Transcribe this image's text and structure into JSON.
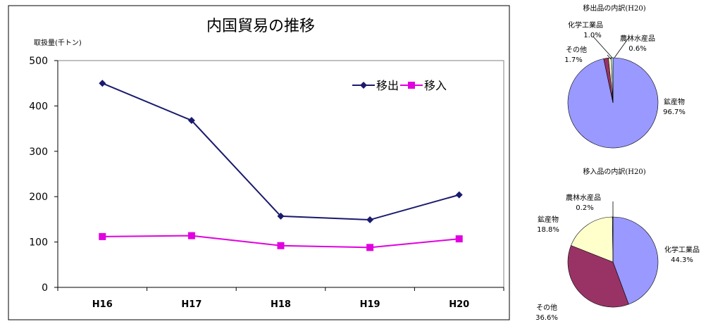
{
  "chart_data": [
    {
      "type": "line",
      "title": "内国貿易の推移",
      "ylabel": "取扱量(千トン)",
      "xlabel": "",
      "categories": [
        "H16",
        "H17",
        "H18",
        "H19",
        "H20"
      ],
      "ylim": [
        0,
        500
      ],
      "yticks": [
        "0",
        "100",
        "200",
        "300",
        "400",
        "500"
      ],
      "grid": false,
      "legend": "top-right",
      "series": [
        {
          "name": "移出",
          "values": [
            450,
            368,
            157,
            149,
            204
          ],
          "color": "#1a1a6e",
          "marker": "diamond"
        },
        {
          "name": "移入",
          "values": [
            112,
            114,
            92,
            88,
            107
          ],
          "color": "#e000e0",
          "marker": "square"
        }
      ]
    },
    {
      "type": "pie",
      "title": "移出品の内訳(H20)",
      "slices": [
        {
          "label": "鉱産物",
          "value": 96.7,
          "value_label": "96.7%",
          "color": "#9999ff"
        },
        {
          "label": "その他",
          "value": 1.7,
          "value_label": "1.7%",
          "color": "#993366"
        },
        {
          "label": "化学工業品",
          "value": 1.0,
          "value_label": "1.0%",
          "color": "#ffffcc"
        },
        {
          "label": "農林水産品",
          "value": 0.6,
          "value_label": "0.6%",
          "color": "#ccffff"
        }
      ]
    },
    {
      "type": "pie",
      "title": "移入品の内訳(H20)",
      "slices": [
        {
          "label": "化学工業品",
          "value": 44.3,
          "value_label": "44.3%",
          "color": "#9999ff"
        },
        {
          "label": "その他",
          "value": 36.6,
          "value_label": "36.6%",
          "color": "#993366"
        },
        {
          "label": "鉱産物",
          "value": 18.8,
          "value_label": "18.8%",
          "color": "#ffffcc"
        },
        {
          "label": "農林水産品",
          "value": 0.2,
          "value_label": "0.2%",
          "color": "#ccffff"
        }
      ]
    }
  ]
}
